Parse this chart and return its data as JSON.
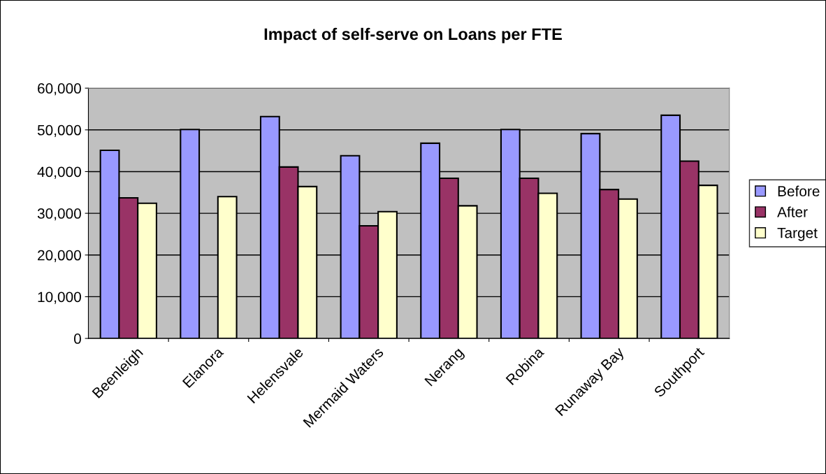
{
  "chart_data": {
    "type": "bar",
    "title": "Impact of self-serve on Loans per FTE",
    "categories": [
      "Beenleigh",
      "Elanora",
      "Helensvale",
      "Mermaid Waters",
      "Nerang",
      "Robina",
      "Runaway Bay",
      "Southport"
    ],
    "series": [
      {
        "name": "Before",
        "color": "#9999ff",
        "values": [
          45100,
          50100,
          53200,
          43800,
          46800,
          50100,
          49100,
          53500
        ]
      },
      {
        "name": "After",
        "color": "#993366",
        "values": [
          33700,
          null,
          41100,
          27000,
          38400,
          38400,
          35700,
          42500
        ]
      },
      {
        "name": "Target",
        "color": "#ffffcc",
        "values": [
          32400,
          34000,
          36400,
          30400,
          31800,
          34800,
          33400,
          36700
        ]
      }
    ],
    "ylim": [
      0,
      60000
    ],
    "yticks": [
      {
        "value": 0,
        "label": "0"
      },
      {
        "value": 10000,
        "label": "10,000"
      },
      {
        "value": 20000,
        "label": "20,000"
      },
      {
        "value": 30000,
        "label": "30,000"
      },
      {
        "value": 40000,
        "label": "40,000"
      },
      {
        "value": 50000,
        "label": "50,000"
      },
      {
        "value": 60000,
        "label": "60,000"
      }
    ],
    "grid": "y",
    "legend": "right"
  }
}
